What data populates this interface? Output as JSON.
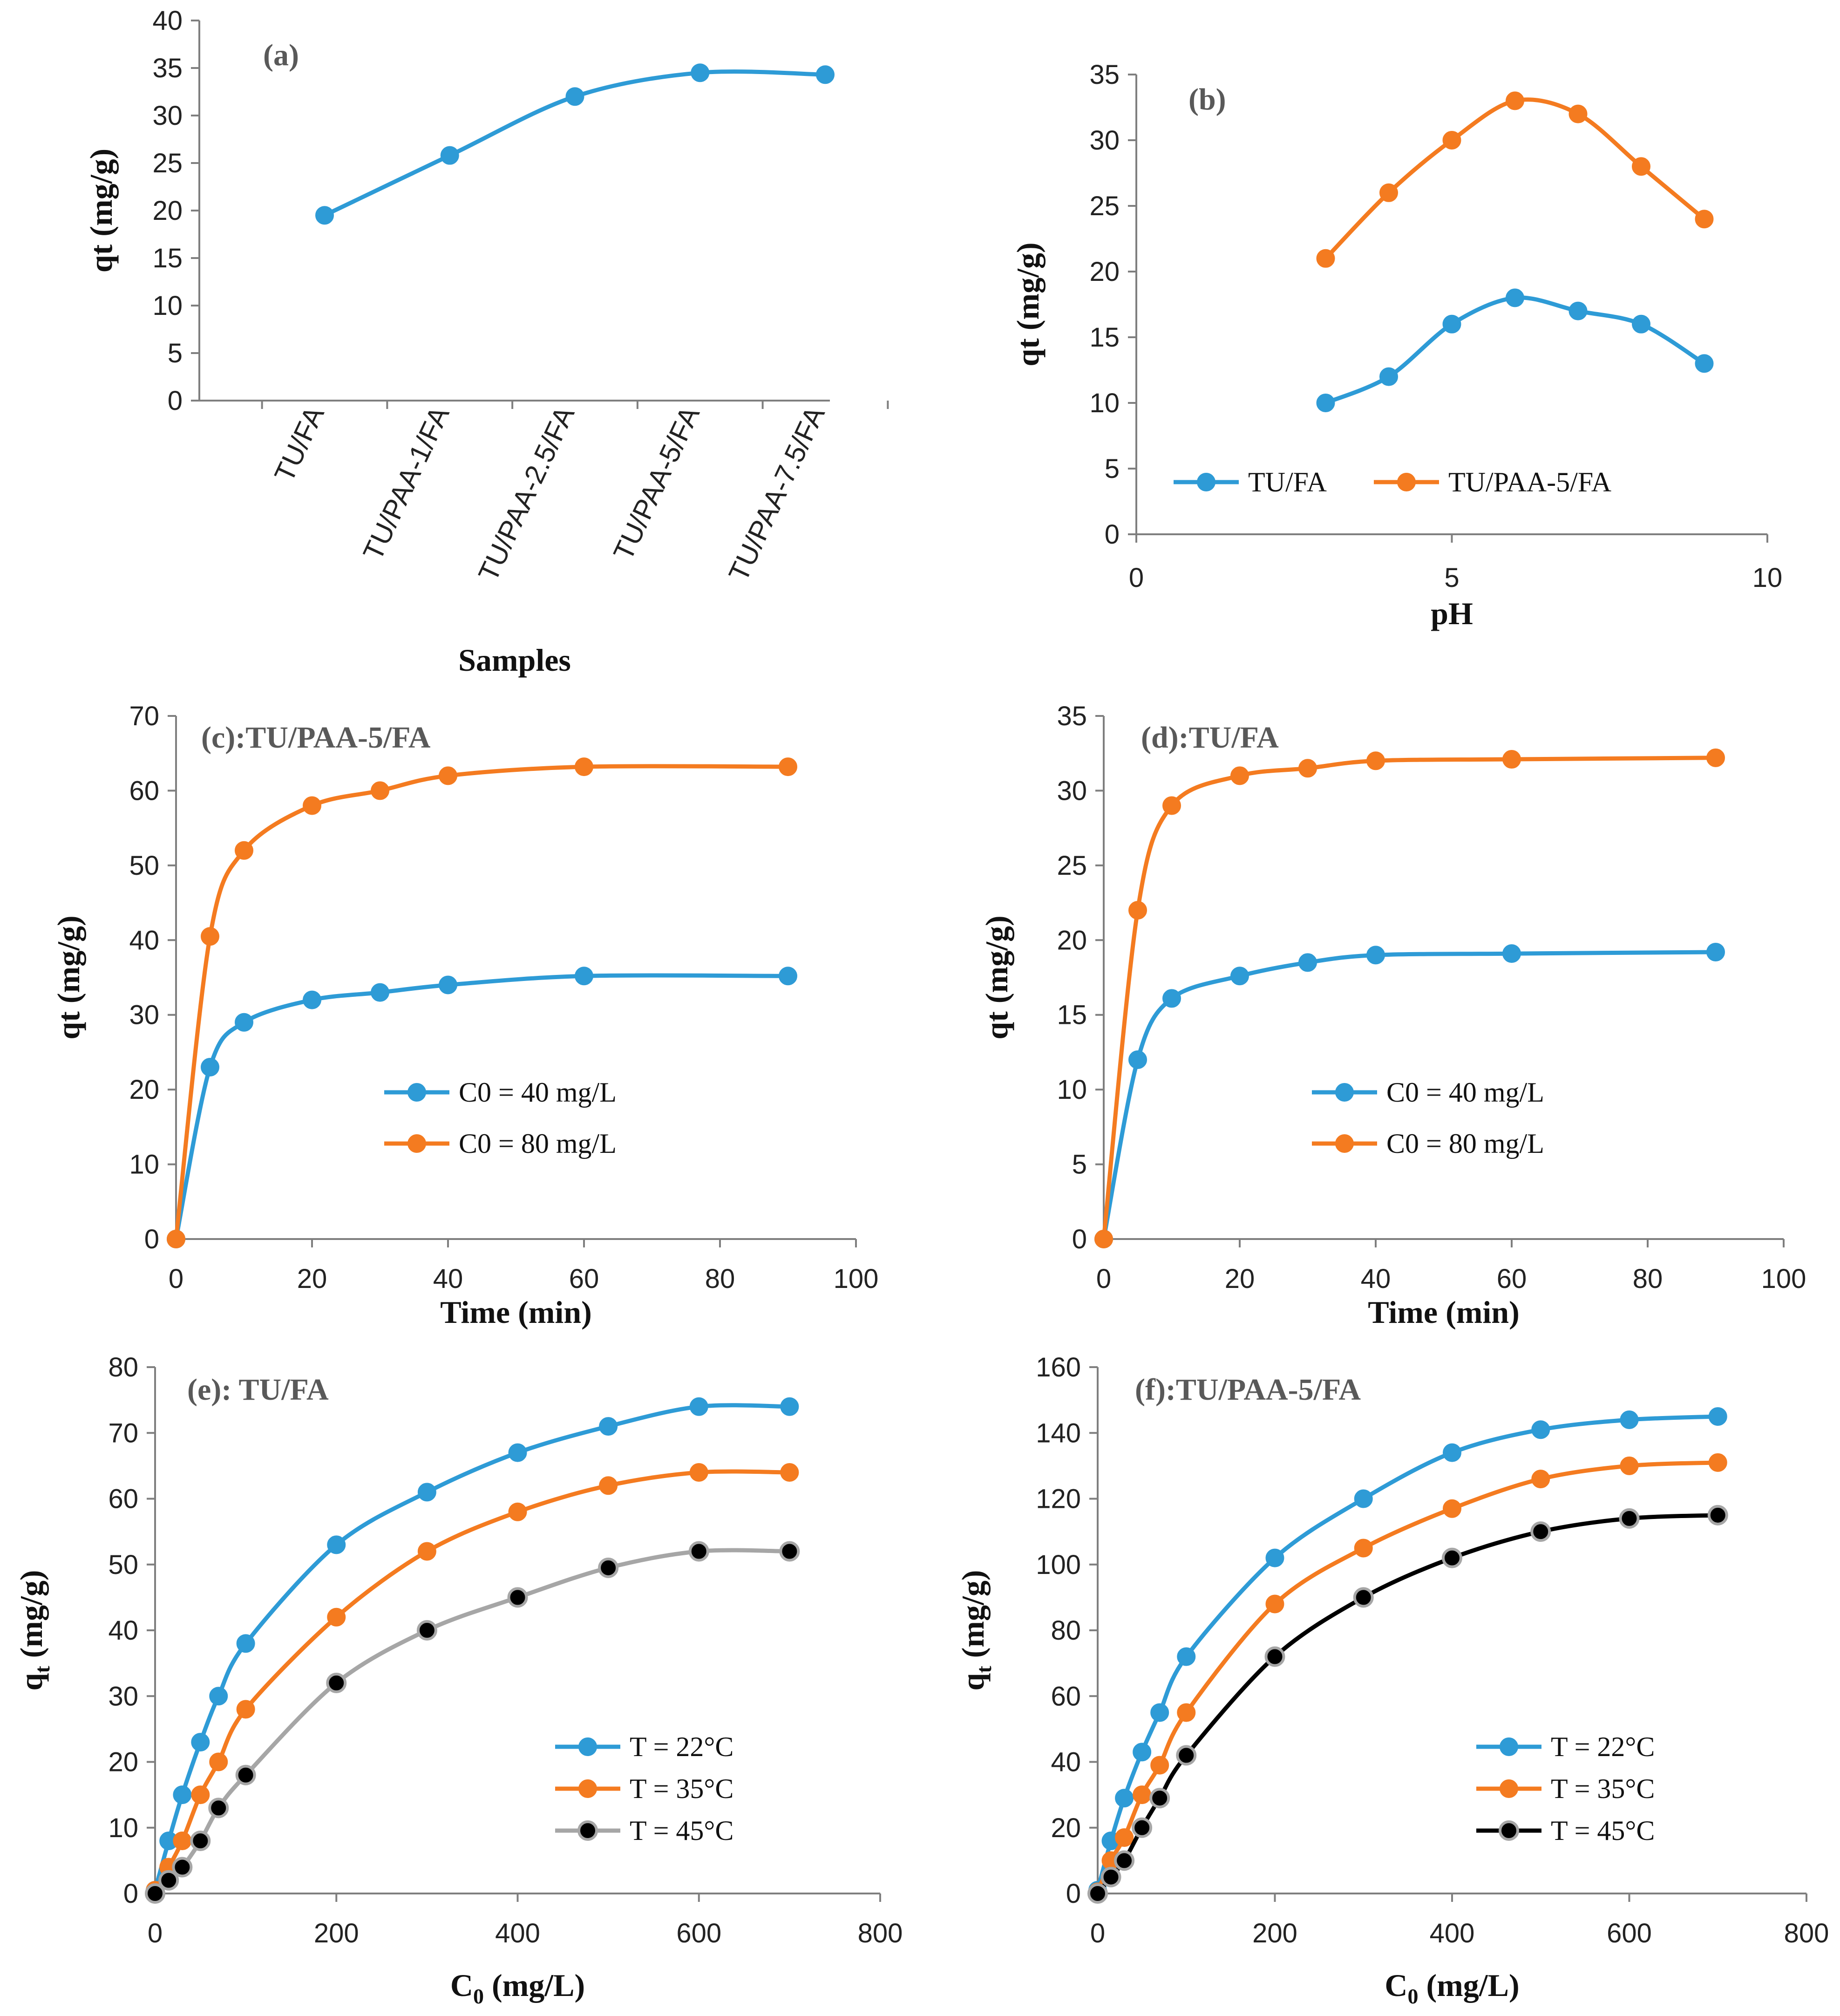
{
  "colors": {
    "blue": "#2e9bd6",
    "orange": "#f47b20",
    "gray": "#a6a6a6",
    "black": "#000000"
  },
  "chart_data": [
    {
      "id": "a",
      "type": "line",
      "title": "(a)",
      "xlabel": "Samples",
      "ylabel": "qt (mg/g)",
      "categories": [
        "TU/FA",
        "TU/PAA-1/FA",
        "TU/PAA-2.5/FA",
        "TU/PAA-5/FA",
        "TU/PAA-7.5/FA"
      ],
      "ylim": [
        0,
        40
      ],
      "yticks": [
        0,
        5,
        10,
        15,
        20,
        25,
        30,
        35,
        40
      ],
      "series": [
        {
          "name": "qt",
          "color": "#2e9bd6",
          "values": [
            19.5,
            25.8,
            32.0,
            34.5,
            34.3
          ]
        }
      ]
    },
    {
      "id": "b",
      "type": "line",
      "title": "(b)",
      "xlabel": "pH",
      "ylabel": "qt (mg/g)",
      "xlim": [
        0,
        10
      ],
      "xticks": [
        0,
        5,
        10
      ],
      "ylim": [
        0,
        35
      ],
      "yticks": [
        0,
        5,
        10,
        15,
        20,
        25,
        30,
        35
      ],
      "legend": "bottom",
      "series": [
        {
          "name": "TU/FA",
          "color": "#2e9bd6",
          "x": [
            3,
            4,
            5,
            6,
            7,
            8,
            9
          ],
          "y": [
            10,
            12,
            16,
            18,
            17,
            16,
            13
          ]
        },
        {
          "name": "TU/PAA-5/FA",
          "color": "#f47b20",
          "x": [
            3,
            4,
            5,
            6,
            7,
            8,
            9
          ],
          "y": [
            21,
            26,
            30,
            33,
            32,
            28,
            24
          ]
        }
      ]
    },
    {
      "id": "c",
      "type": "line",
      "title": "(c):TU/PAA-5/FA",
      "xlabel": "Time (min)",
      "ylabel": "qt (mg/g)",
      "xlim": [
        0,
        100
      ],
      "xticks": [
        0,
        20,
        40,
        60,
        80,
        100
      ],
      "ylim": [
        0,
        70
      ],
      "yticks": [
        0,
        10,
        20,
        30,
        40,
        50,
        60,
        70
      ],
      "legend": "bottom-right",
      "series": [
        {
          "name": "C0 = 40 mg/L",
          "color": "#2e9bd6",
          "x": [
            0,
            5,
            10,
            20,
            30,
            40,
            60,
            90
          ],
          "y": [
            0,
            23,
            29,
            32,
            33,
            34,
            35.2,
            35.2
          ]
        },
        {
          "name": "C0 = 80 mg/L",
          "color": "#f47b20",
          "x": [
            0,
            5,
            10,
            20,
            30,
            40,
            60,
            90
          ],
          "y": [
            0,
            40.5,
            52,
            58,
            60,
            62,
            63.2,
            63.2
          ]
        }
      ]
    },
    {
      "id": "d",
      "type": "line",
      "title": "(d):TU/FA",
      "xlabel": "Time (min)",
      "ylabel": "qt (mg/g)",
      "xlim": [
        0,
        100
      ],
      "xticks": [
        0,
        20,
        40,
        60,
        80,
        100
      ],
      "ylim": [
        0,
        35
      ],
      "yticks": [
        0,
        5,
        10,
        15,
        20,
        25,
        30,
        35
      ],
      "legend": "bottom-right",
      "series": [
        {
          "name": "C0 = 40 mg/L",
          "color": "#2e9bd6",
          "x": [
            0,
            5,
            10,
            20,
            30,
            40,
            60,
            90
          ],
          "y": [
            0,
            12,
            16.1,
            17.6,
            18.5,
            19,
            19.1,
            19.2
          ]
        },
        {
          "name": "C0 = 80 mg/L",
          "color": "#f47b20",
          "x": [
            0,
            5,
            10,
            20,
            30,
            40,
            60,
            90
          ],
          "y": [
            0,
            22,
            29,
            31,
            31.5,
            32,
            32.1,
            32.2
          ]
        }
      ]
    },
    {
      "id": "e",
      "type": "line",
      "title": "(e): TU/FA",
      "xlabel": "C0 (mg/L)",
      "ylabel": "qt (mg/g)",
      "xlim": [
        0,
        800
      ],
      "xticks": [
        0,
        200,
        400,
        600,
        800
      ],
      "ylim": [
        0,
        80
      ],
      "yticks": [
        0,
        10,
        20,
        30,
        40,
        50,
        60,
        70,
        80
      ],
      "legend": "bottom-right",
      "series": [
        {
          "name": "T = 22°C",
          "color": "#2e9bd6",
          "x": [
            0,
            15,
            30,
            50,
            70,
            100,
            200,
            300,
            400,
            500,
            600,
            700
          ],
          "y": [
            0.5,
            8,
            15,
            23,
            30,
            38,
            53,
            61,
            67,
            71,
            74,
            74
          ]
        },
        {
          "name": "T = 35°C",
          "color": "#f47b20",
          "x": [
            0,
            15,
            30,
            50,
            70,
            100,
            200,
            300,
            400,
            500,
            600,
            700
          ],
          "y": [
            0.5,
            4,
            8,
            15,
            20,
            28,
            42,
            52,
            58,
            62,
            64,
            64
          ]
        },
        {
          "name": "T = 45°C",
          "color": "#a6a6a6",
          "marker": "#000000",
          "x": [
            0,
            15,
            30,
            50,
            70,
            100,
            200,
            300,
            400,
            500,
            600,
            700
          ],
          "y": [
            0,
            2,
            4,
            8,
            13,
            18,
            32,
            40,
            45,
            49.5,
            52,
            52
          ]
        }
      ]
    },
    {
      "id": "f",
      "type": "line",
      "title": "(f):TU/PAA-5/FA",
      "xlabel": "C0 (mg/L)",
      "ylabel": "qt (mg/g)",
      "xlim": [
        0,
        800
      ],
      "xticks": [
        0,
        200,
        400,
        600,
        800
      ],
      "ylim": [
        0,
        160
      ],
      "yticks": [
        0,
        20,
        40,
        60,
        80,
        100,
        120,
        140,
        160
      ],
      "legend": "bottom-right",
      "series": [
        {
          "name": "T = 22°C",
          "color": "#2e9bd6",
          "x": [
            0,
            15,
            30,
            50,
            70,
            100,
            200,
            300,
            400,
            500,
            600,
            700
          ],
          "y": [
            1,
            16,
            29,
            43,
            55,
            72,
            102,
            120,
            134,
            141,
            144,
            145
          ]
        },
        {
          "name": "T = 35°C",
          "color": "#f47b20",
          "x": [
            0,
            15,
            30,
            50,
            70,
            100,
            200,
            300,
            400,
            500,
            600,
            700
          ],
          "y": [
            0.5,
            10,
            17,
            30,
            39,
            55,
            88,
            105,
            117,
            126,
            130,
            131
          ]
        },
        {
          "name": "T = 45°C",
          "color": "#000000",
          "marker": "#000000",
          "x": [
            0,
            15,
            30,
            50,
            70,
            100,
            200,
            300,
            400,
            500,
            600,
            700
          ],
          "y": [
            0,
            5,
            10,
            20,
            29,
            42,
            72,
            90,
            102,
            110,
            114,
            115
          ]
        }
      ]
    }
  ]
}
